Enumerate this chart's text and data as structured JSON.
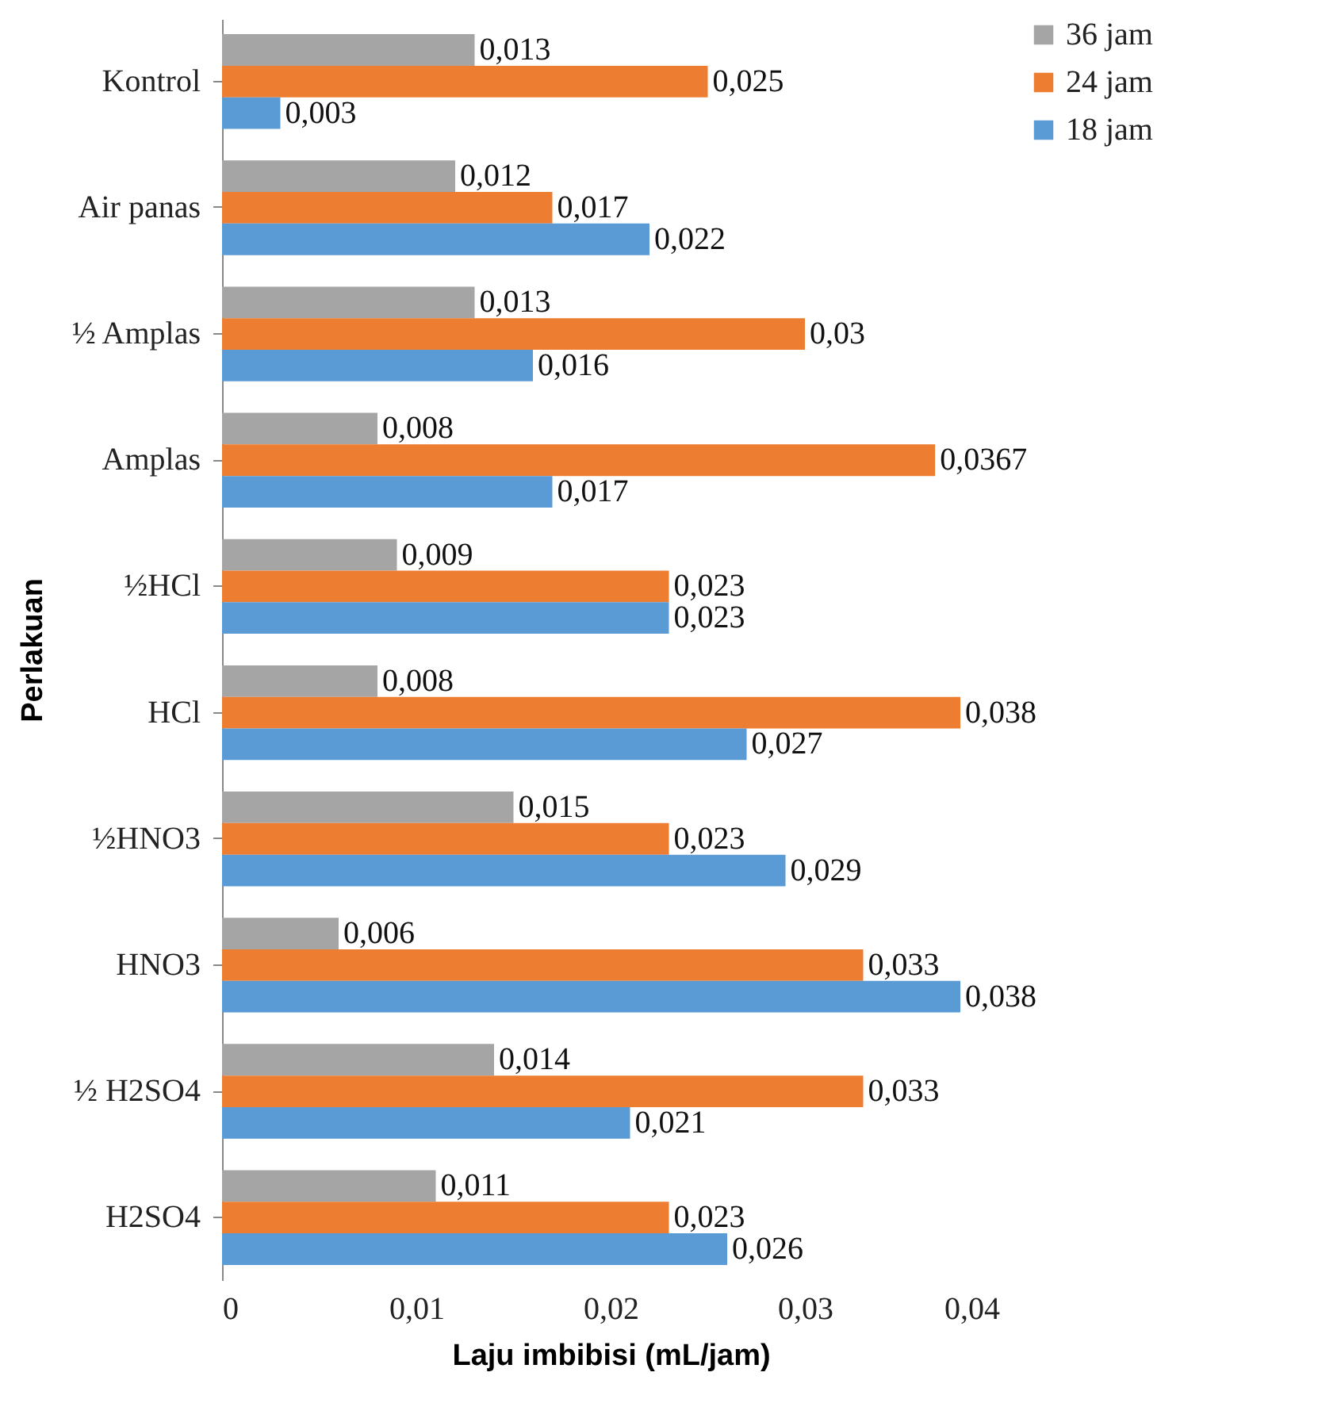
{
  "chart_data": {
    "type": "bar",
    "orientation": "horizontal",
    "xlabel": "Laju imbibisi  (mL/jam)",
    "ylabel": "Perlakuan",
    "categories": [
      "Kontrol",
      "Air panas",
      "½ Amplas",
      "Amplas",
      "½HCl",
      "HCl",
      "½HNO3",
      "HNO3",
      "½ H2SO4",
      "H2SO4"
    ],
    "series": [
      {
        "name": "36 jam",
        "color": "#a5a5a5",
        "values": [
          0.013,
          0.012,
          0.013,
          0.008,
          0.009,
          0.008,
          0.015,
          0.006,
          0.014,
          0.011
        ],
        "value_labels": [
          "0,013",
          "0,012",
          "0,013",
          "0,008",
          "0,009",
          "0,008",
          "0,015",
          "0,006",
          "0,014",
          "0,011"
        ]
      },
      {
        "name": "24 jam",
        "color": "#ed7d31",
        "values": [
          0.025,
          0.017,
          0.03,
          0.0367,
          0.023,
          0.038,
          0.023,
          0.033,
          0.033,
          0.023
        ],
        "value_labels": [
          "0,025",
          "0,017",
          "0,03",
          "0,0367",
          "0,023",
          "0,038",
          "0,023",
          "0,033",
          "0,033",
          "0,023"
        ]
      },
      {
        "name": "18 jam",
        "color": "#5b9bd5",
        "values": [
          0.003,
          0.022,
          0.016,
          0.017,
          0.023,
          0.027,
          0.029,
          0.038,
          0.021,
          0.026
        ],
        "value_labels": [
          "0,003",
          "0,022",
          "0,016",
          "0,017",
          "0,023",
          "0,027",
          "0,029",
          "0,038",
          "0,021",
          "0,026"
        ]
      }
    ],
    "xlim": [
      0,
      0.04
    ],
    "xticks": [
      {
        "value": 0,
        "label": "0"
      },
      {
        "value": 0.01,
        "label": "0,01"
      },
      {
        "value": 0.02,
        "label": "0,02"
      },
      {
        "value": 0.03,
        "label": "0,03"
      },
      {
        "value": 0.04,
        "label": "0,04"
      }
    ],
    "grid": false,
    "legend": "right"
  }
}
